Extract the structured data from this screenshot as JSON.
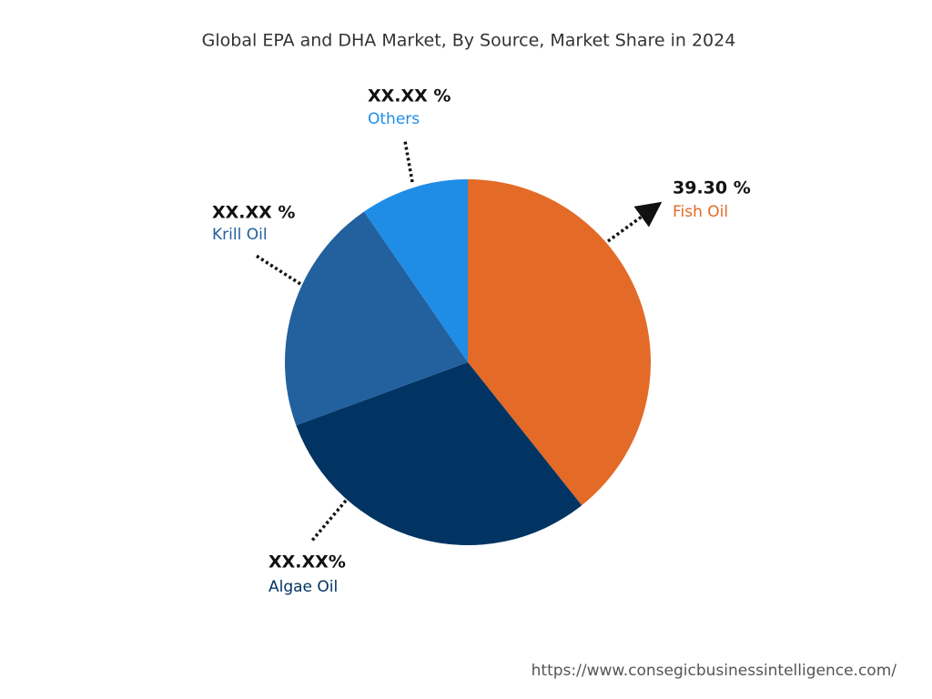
{
  "chart_data": {
    "type": "pie",
    "title": "Global EPA and DHA Market, By Source, Market Share in 2024",
    "categories": [
      "Fish Oil",
      "Algae Oil",
      "Krill Oil",
      "Others"
    ],
    "values": [
      39.3,
      30.1,
      21.0,
      9.6
    ],
    "value_labels": [
      "39.30 %",
      "XX.XX%",
      "XX.XX %",
      "XX.XX %"
    ],
    "colors": [
      "#e36a27",
      "#013462",
      "#22609e",
      "#1f8ce6"
    ]
  },
  "footer": "https://www.consegicbusinessintelligence.com/"
}
